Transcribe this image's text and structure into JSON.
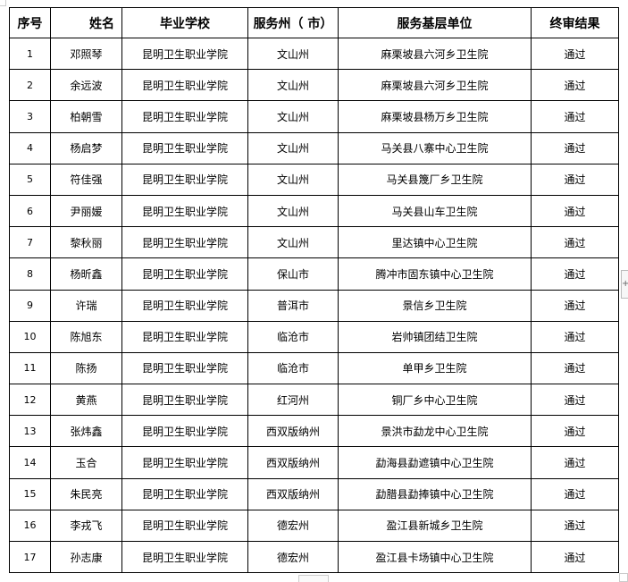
{
  "table": {
    "headers": [
      "序号",
      "姓名",
      "毕业学校",
      "服务州（ 市）",
      "服务基层单位",
      "终审结果"
    ],
    "rows": [
      [
        "1",
        "邓照琴",
        "昆明卫生职业学院",
        "文山州",
        "麻栗坡县六河乡卫生院",
        "通过"
      ],
      [
        "2",
        "余远波",
        "昆明卫生职业学院",
        "文山州",
        "麻栗坡县六河乡卫生院",
        "通过"
      ],
      [
        "3",
        "柏朝雪",
        "昆明卫生职业学院",
        "文山州",
        "麻栗坡县杨万乡卫生院",
        "通过"
      ],
      [
        "4",
        "杨启梦",
        "昆明卫生职业学院",
        "文山州",
        "马关县八寨中心卫生院",
        "通过"
      ],
      [
        "5",
        "符佳强",
        "昆明卫生职业学院",
        "文山州",
        "马关县篾厂乡卫生院",
        "通过"
      ],
      [
        "6",
        "尹丽媛",
        "昆明卫生职业学院",
        "文山州",
        "马关县山车卫生院",
        "通过"
      ],
      [
        "7",
        "黎秋丽",
        "昆明卫生职业学院",
        "文山州",
        "里达镇中心卫生院",
        "通过"
      ],
      [
        "8",
        "杨昕鑫",
        "昆明卫生职业学院",
        "保山市",
        "腾冲市固东镇中心卫生院",
        "通过"
      ],
      [
        "9",
        "许瑞",
        "昆明卫生职业学院",
        "普洱市",
        "景信乡卫生院",
        "通过"
      ],
      [
        "10",
        "陈旭东",
        "昆明卫生职业学院",
        "临沧市",
        "岩帅镇团结卫生院",
        "通过"
      ],
      [
        "11",
        "陈扬",
        "昆明卫生职业学院",
        "临沧市",
        "单甲乡卫生院",
        "通过"
      ],
      [
        "12",
        "黄燕",
        "昆明卫生职业学院",
        "红河州",
        "铜厂乡中心卫生院",
        "通过"
      ],
      [
        "13",
        "张炜鑫",
        "昆明卫生职业学院",
        "西双版纳州",
        "景洪市勐龙中心卫生院",
        "通过"
      ],
      [
        "14",
        "玉合",
        "昆明卫生职业学院",
        "西双版纳州",
        "勐海县勐遮镇中心卫生院",
        "通过"
      ],
      [
        "15",
        "朱民亮",
        "昆明卫生职业学院",
        "西双版纳州",
        "勐腊县勐捧镇中心卫生院",
        "通过"
      ],
      [
        "16",
        "李戎飞",
        "昆明卫生职业学院",
        "德宏州",
        "盈江县新城乡卫生院",
        "通过"
      ],
      [
        "17",
        "孙志康",
        "昆明卫生职业学院",
        "德宏州",
        "盈江县卡场镇中心卫生院",
        "通过"
      ]
    ]
  },
  "ui": {
    "side_button_glyph": "+"
  }
}
